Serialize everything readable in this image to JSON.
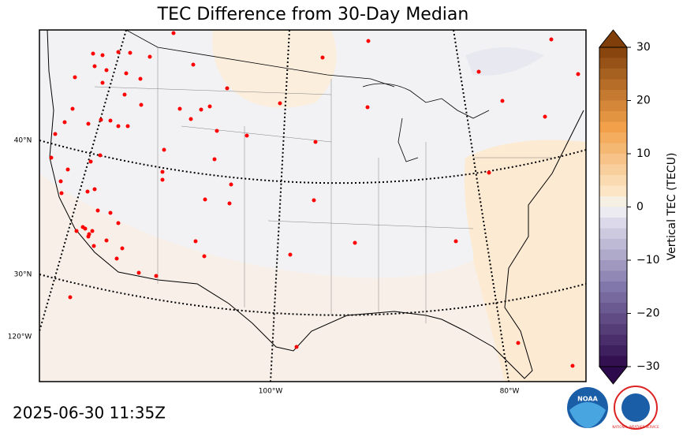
{
  "title": "TEC Difference from 30-Day Median",
  "timestamp": "2025-06-30 11:35Z",
  "colorbar": {
    "label": "Vertical TEC (TECU)",
    "lim": [
      -30,
      30
    ],
    "ticks": [
      {
        "value": -30,
        "label": "−30"
      },
      {
        "value": -20,
        "label": "−20"
      },
      {
        "value": -10,
        "label": "−10"
      },
      0,
      10,
      20,
      30
    ]
  },
  "graticule": {
    "lat_labels": [
      "40°N",
      "30°N"
    ],
    "lon_labels": [
      "120°W",
      "100°W",
      "80°W"
    ]
  },
  "logos": [
    "NOAA",
    "NATIONAL WEATHER SERVICE"
  ]
}
